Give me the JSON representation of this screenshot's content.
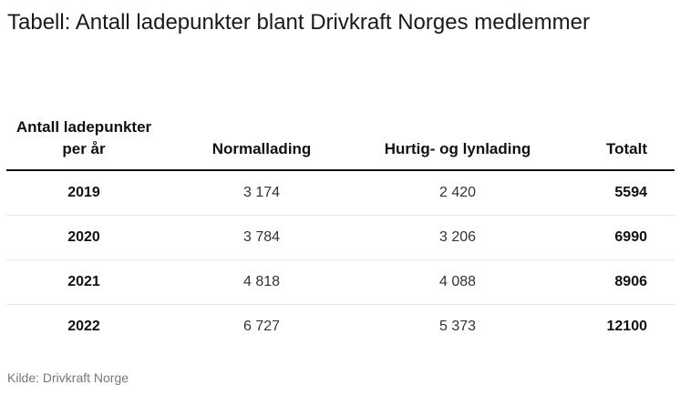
{
  "title": "Tabell: Antall ladepunkter blant Drivkraft Norges medlemmer",
  "source": "Kilde: Drivkraft Norge",
  "chart_data": {
    "type": "table",
    "title": "Tabell: Antall ladepunkter blant Drivkraft Norges medlemmer",
    "columns": [
      "Antall ladepunkter per år",
      "Normallading",
      "Hurtig- og lynlading",
      "Totalt"
    ],
    "rows": [
      [
        "2019",
        "3 174",
        "2 420",
        "5594"
      ],
      [
        "2020",
        "3 784",
        "3 206",
        "6990"
      ],
      [
        "2021",
        "4 818",
        "4 088",
        "8906"
      ],
      [
        "2022",
        "6 727",
        "5 373",
        "12100"
      ]
    ]
  }
}
